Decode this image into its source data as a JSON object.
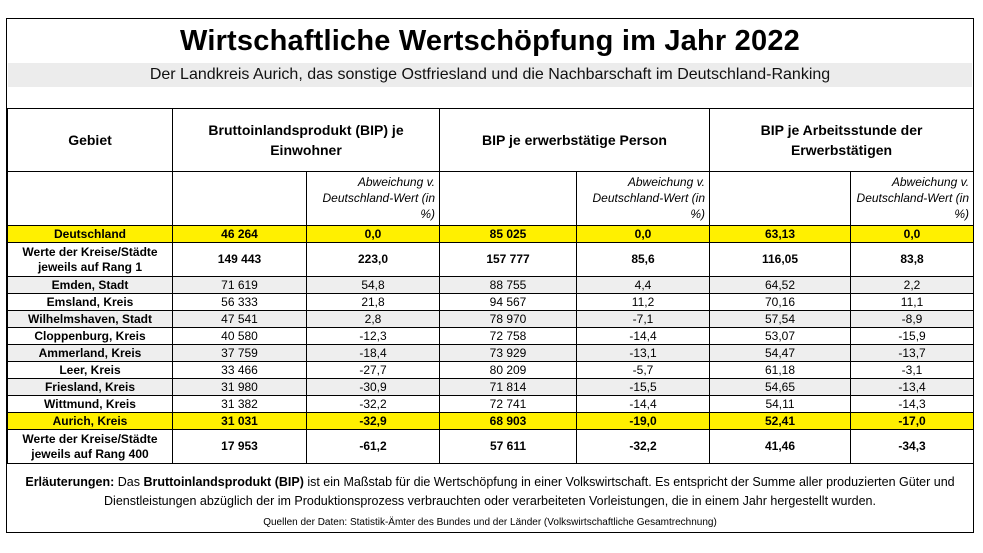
{
  "title": "Wirtschaftliche Wertschöpfung im Jahr 2022",
  "subtitle": "Der Landkreis Aurich, das sonstige Ostfriesland und die Nachbarschaft im Deutschland-Ranking",
  "headers": {
    "gebiet": "Gebiet",
    "col1": "Bruttoinlandsprodukt (BIP) je Einwohner",
    "col2": "BIP je erwerbstätige Person",
    "col3": "BIP je Arbeitsstunde der Erwerbstätigen",
    "abweichung": "Abweichung v. Deutschland-Wert (in %)"
  },
  "rows": [
    {
      "name": "Deutschland",
      "v1": "46 264",
      "a1": "0,0",
      "v2": "85 025",
      "a2": "0,0",
      "v3": "63,13",
      "a3": "0,0"
    },
    {
      "name": "Werte der Kreise/Städte jeweils auf Rang 1",
      "v1": "149 443",
      "a1": "223,0",
      "v2": "157 777",
      "a2": "85,6",
      "v3": "116,05",
      "a3": "83,8"
    },
    {
      "name": "Emden, Stadt",
      "v1": "71 619",
      "a1": "54,8",
      "v2": "88 755",
      "a2": "4,4",
      "v3": "64,52",
      "a3": "2,2"
    },
    {
      "name": "Emsland, Kreis",
      "v1": "56 333",
      "a1": "21,8",
      "v2": "94 567",
      "a2": "11,2",
      "v3": "70,16",
      "a3": "11,1"
    },
    {
      "name": "Wilhelmshaven, Stadt",
      "v1": "47 541",
      "a1": "2,8",
      "v2": "78 970",
      "a2": "-7,1",
      "v3": "57,54",
      "a3": "-8,9"
    },
    {
      "name": "Cloppenburg, Kreis",
      "v1": "40 580",
      "a1": "-12,3",
      "v2": "72 758",
      "a2": "-14,4",
      "v3": "53,07",
      "a3": "-15,9"
    },
    {
      "name": "Ammerland, Kreis",
      "v1": "37 759",
      "a1": "-18,4",
      "v2": "73 929",
      "a2": "-13,1",
      "v3": "54,47",
      "a3": "-13,7"
    },
    {
      "name": "Leer, Kreis",
      "v1": "33 466",
      "a1": "-27,7",
      "v2": "80 209",
      "a2": "-5,7",
      "v3": "61,18",
      "a3": "-3,1"
    },
    {
      "name": "Friesland, Kreis",
      "v1": "31 980",
      "a1": "-30,9",
      "v2": "71 814",
      "a2": "-15,5",
      "v3": "54,65",
      "a3": "-13,4"
    },
    {
      "name": "Wittmund, Kreis",
      "v1": "31 382",
      "a1": "-32,2",
      "v2": "72 741",
      "a2": "-14,4",
      "v3": "54,11",
      "a3": "-14,3"
    },
    {
      "name": "Aurich, Kreis",
      "v1": "31 031",
      "a1": "-32,9",
      "v2": "68 903",
      "a2": "-19,0",
      "v3": "52,41",
      "a3": "-17,0"
    },
    {
      "name": "Werte der Kreise/Städte jeweils auf Rang 400",
      "v1": "17 953",
      "a1": "-61,2",
      "v2": "57 611",
      "a2": "-32,2",
      "v3": "41,46",
      "a3": "-34,3"
    }
  ],
  "footnote": {
    "lead": "Erläuterungen:",
    "pre": " Das ",
    "term": "Bruttoinlandsprodukt (BIP)",
    "post": " ist ein Maßstab für die Wertschöpfung in einer Volkswirtschaft. Es  entspricht der Summe aller produzierten Güter und Dienstleistungen abzüglich der im Produktionsprozess verbrauchten oder verarbeiteten Vorleistungen, die in einem Jahr hergestellt wurden."
  },
  "source": "Quellen der Daten: Statistik-Ämter des Bundes und der Länder (Volkswirtschaftliche Gesamtrechnung)",
  "colors": {
    "highlight": "#fff000",
    "alt_row": "#eeeeee",
    "subtitle_bg": "#ececec"
  }
}
